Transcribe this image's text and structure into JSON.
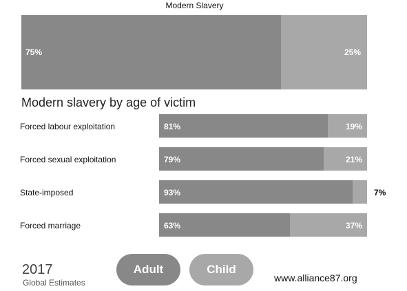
{
  "colors": {
    "adult": "#888888",
    "child": "#a8a8a8",
    "background": "#ffffff"
  },
  "chart_data": [
    {
      "type": "bar",
      "title": "Modern Slavery",
      "categories": [
        ""
      ],
      "series": [
        {
          "name": "Adult",
          "values": [
            75
          ]
        },
        {
          "name": "Child",
          "values": [
            25
          ]
        }
      ],
      "value_labels": {
        "adult": "75%",
        "child": "25%"
      },
      "stacked": true,
      "orientation": "horizontal",
      "ylim": [
        0,
        100
      ]
    },
    {
      "type": "bar",
      "title": "Modern slavery by age of victim",
      "stacked": true,
      "orientation": "horizontal",
      "ylim": [
        0,
        100
      ],
      "categories": [
        "Forced labour exploitation",
        "Forced sexual exploitation",
        "State-imposed",
        "Forced marriage"
      ],
      "series": [
        {
          "name": "Adult",
          "values": [
            81,
            79,
            93,
            63
          ]
        },
        {
          "name": "Child",
          "values": [
            19,
            21,
            7,
            37
          ]
        }
      ],
      "rows": [
        {
          "label": "Forced labour exploitation",
          "adult": 81,
          "child": 19,
          "adult_label": "81%",
          "child_label": "19%"
        },
        {
          "label": "Forced sexual exploitation",
          "adult": 79,
          "child": 21,
          "adult_label": "79%",
          "child_label": "21%"
        },
        {
          "label": "State-imposed",
          "adult": 93,
          "child": 7,
          "adult_label": "93%",
          "child_label": "7%"
        },
        {
          "label": "Forced marriage",
          "adult": 63,
          "child": 37,
          "adult_label": "63%",
          "child_label": "37%"
        }
      ]
    }
  ],
  "footer": {
    "year": "2017",
    "subtitle": "Global Estimates",
    "legend_adult": "Adult",
    "legend_child": "Child",
    "website": "www.alliance87.org"
  }
}
